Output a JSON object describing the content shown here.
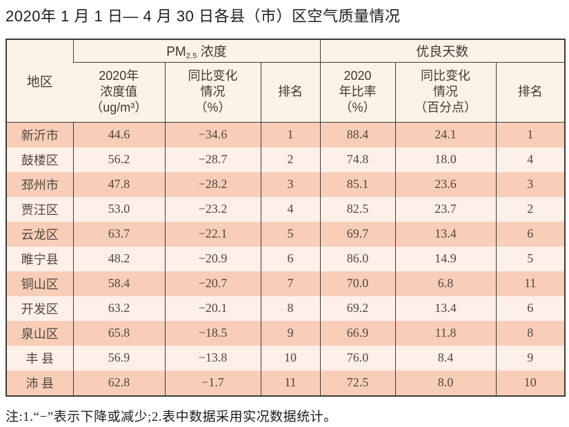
{
  "page": {
    "title": "2020年 1 月 1 日— 4 月 30 日各县（市）区空气质量情况",
    "note": "注:1.“−”表示下降或减少;2.表中数据采用实况数据统计。"
  },
  "table": {
    "header": {
      "region": "地区",
      "pm_group": {
        "base": "PM",
        "sub": "2.5",
        "rest": " 浓度"
      },
      "good_days_group": "优良天数",
      "subheaders": [
        "2020年\n浓度值\n（ug/m³）",
        "同比变化\n情况\n（%）",
        "排名",
        "2020\n年比率\n（%）",
        "同比变化\n情况\n（百分点）",
        "排名"
      ]
    },
    "rows": [
      [
        "新沂市",
        "44.6",
        "−34.6",
        "1",
        "88.4",
        "24.1",
        "1"
      ],
      [
        "鼓楼区",
        "56.2",
        "−28.7",
        "2",
        "74.8",
        "18.0",
        "4"
      ],
      [
        "邳州市",
        "47.8",
        "−28.2",
        "3",
        "85.1",
        "23.6",
        "3"
      ],
      [
        "贾汪区",
        "53.0",
        "−23.2",
        "4",
        "82.5",
        "23.7",
        "2"
      ],
      [
        "云龙区",
        "63.7",
        "−22.1",
        "5",
        "69.7",
        "13.4",
        "6"
      ],
      [
        "睢宁县",
        "48.2",
        "−20.9",
        "6",
        "86.0",
        "14.9",
        "5"
      ],
      [
        "铜山区",
        "58.4",
        "−20.7",
        "7",
        "70.0",
        "6.8",
        "11"
      ],
      [
        "开发区",
        "63.2",
        "−20.1",
        "8",
        "69.2",
        "13.4",
        "6"
      ],
      [
        "泉山区",
        "65.8",
        "−18.5",
        "9",
        "66.9",
        "11.8",
        "8"
      ],
      [
        "丰 县",
        "56.9",
        "−13.8",
        "10",
        "76.0",
        "8.4",
        "9"
      ],
      [
        "沛 县",
        "62.8",
        "−1.7",
        "11",
        "72.5",
        "8.0",
        "10"
      ]
    ],
    "colors": {
      "row_salmon": "#f8ceb8",
      "row_light": "#fcf0e8",
      "header_bg": "#fcf2e5",
      "border": "#3a3a3a"
    }
  }
}
